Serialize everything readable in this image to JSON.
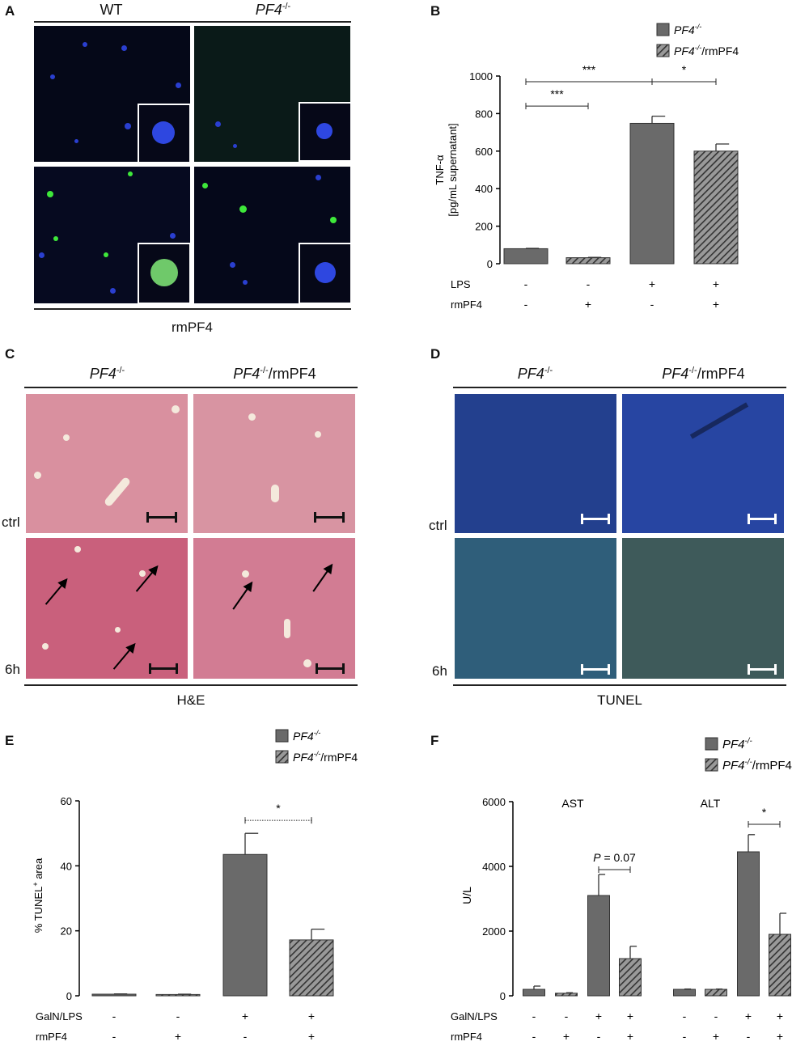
{
  "panels": {
    "A": {
      "letter": "A",
      "col1": "WT",
      "col2": "PF4",
      "col2_sup": "-/-",
      "footer": "rmPF4"
    },
    "C": {
      "letter": "C",
      "col1": "PF4",
      "col1_sup": "-/-",
      "col2": "PF4",
      "col2_sup": "-/-",
      "col2_suffix": "/rmPF4",
      "row1": "ctrl",
      "row2": "6h",
      "footer": "H&E"
    },
    "D": {
      "letter": "D",
      "col1": "PF4",
      "col1_sup": "-/-",
      "col2": "PF4",
      "col2_sup": "-/-",
      "col2_suffix": "/rmPF4",
      "row1": "ctrl",
      "row2": "6h",
      "footer": "TUNEL"
    }
  },
  "colors": {
    "bar_solid": "#6a6a6a",
    "bar_hatch": "#555555",
    "micro_bg": "#05081a",
    "nuclei": "#2a3fd0",
    "green": "#3ee83a",
    "he_bg": "#d9909f",
    "tunel_bg": "#1f3a8a"
  },
  "chart_data": [
    {
      "panel": "B",
      "type": "bar",
      "legend": [
        "PF4-/-",
        "PF4-/-/rmPF4"
      ],
      "legend_parts": [
        {
          "name": "PF4",
          "sup": "-/-",
          "suffix": ""
        },
        {
          "name": "PF4",
          "sup": "-/-",
          "suffix": "/rmPF4"
        }
      ],
      "ylabel_line1": "TNF-α",
      "ylabel_line2": "[pg/mL supernatant]",
      "ylim": [
        0,
        1000
      ],
      "yticks": [
        0,
        200,
        400,
        600,
        800,
        1000
      ],
      "bars": [
        {
          "series": 0,
          "value": 80,
          "err": 2
        },
        {
          "series": 1,
          "value": 32,
          "err": 2
        },
        {
          "series": 0,
          "value": 748,
          "err": 38
        },
        {
          "series": 1,
          "value": 600,
          "err": 38
        }
      ],
      "conditions": [
        {
          "label": "LPS",
          "values": [
            "-",
            "-",
            "+",
            "+"
          ]
        },
        {
          "label": "rmPF4",
          "values": [
            "-",
            "+",
            "-",
            "+"
          ]
        }
      ],
      "brackets": [
        {
          "from": 0,
          "to": 1,
          "y": 840,
          "label": "***",
          "style": "solid"
        },
        {
          "from": 0,
          "to": 2,
          "y": 970,
          "label": "***",
          "style": "solid"
        },
        {
          "from": 2,
          "to": 3,
          "y": 970,
          "label": "*",
          "style": "solid"
        }
      ]
    },
    {
      "panel": "E",
      "type": "bar",
      "legend": [
        "PF4-/-",
        "PF4-/-/rmPF4"
      ],
      "legend_parts": [
        {
          "name": "PF4",
          "sup": "-/-",
          "suffix": ""
        },
        {
          "name": "PF4",
          "sup": "-/-",
          "suffix": "/rmPF4"
        }
      ],
      "ylabel": "% TUNEL",
      "ylabel_sup": "+",
      "ylabel_suffix": " area",
      "ylim": [
        0,
        60
      ],
      "yticks": [
        0,
        20,
        40,
        60
      ],
      "bars": [
        {
          "series": 0,
          "value": 0.5,
          "err": 0.1
        },
        {
          "series": 1,
          "value": 0.4,
          "err": 0.1
        },
        {
          "series": 0,
          "value": 43.5,
          "err": 6.5
        },
        {
          "series": 1,
          "value": 17.2,
          "err": 3.3
        }
      ],
      "conditions": [
        {
          "label": "GalN/LPS",
          "values": [
            "-",
            "-",
            "+",
            "+"
          ]
        },
        {
          "label": "rmPF4",
          "values": [
            "-",
            "+",
            "-",
            "+"
          ]
        }
      ],
      "brackets": [
        {
          "from": 2,
          "to": 3,
          "y": 54,
          "label": "*",
          "style": "dotted"
        }
      ]
    },
    {
      "panel": "F",
      "type": "bar",
      "legend": [
        "PF4-/-",
        "PF4-/-/rmPF4"
      ],
      "legend_parts": [
        {
          "name": "PF4",
          "sup": "-/-",
          "suffix": ""
        },
        {
          "name": "PF4",
          "sup": "-/-",
          "suffix": "/rmPF4"
        }
      ],
      "ylabel": "U/L",
      "ylim": [
        0,
        6000
      ],
      "yticks": [
        0,
        2000,
        4000,
        6000
      ],
      "groups": [
        "AST",
        "ALT"
      ],
      "bars": [
        {
          "group": 0,
          "series": 0,
          "value": 200,
          "err": 100
        },
        {
          "group": 0,
          "series": 1,
          "value": 80,
          "err": 15
        },
        {
          "group": 0,
          "series": 0,
          "value": 3100,
          "err": 650
        },
        {
          "group": 0,
          "series": 1,
          "value": 1150,
          "err": 380
        },
        {
          "group": 1,
          "series": 0,
          "value": 200,
          "err": 10
        },
        {
          "group": 1,
          "series": 1,
          "value": 200,
          "err": 10
        },
        {
          "group": 1,
          "series": 0,
          "value": 4450,
          "err": 530
        },
        {
          "group": 1,
          "series": 1,
          "value": 1900,
          "err": 650
        }
      ],
      "conditions": [
        {
          "label": "GalN/LPS",
          "values": [
            "-",
            "-",
            "+",
            "+",
            "-",
            "-",
            "+",
            "+"
          ]
        },
        {
          "label": "rmPF4",
          "values": [
            "-",
            "+",
            "-",
            "+",
            "-",
            "+",
            "-",
            "+"
          ]
        }
      ],
      "brackets": [
        {
          "from": 2,
          "to": 3,
          "y": 3900,
          "label": "P = 0.07",
          "italic_prefix": "P",
          "label_rest": " = 0.07",
          "style": "solid"
        },
        {
          "from": 6,
          "to": 7,
          "y": 5300,
          "label": "*",
          "style": "solid"
        }
      ]
    }
  ]
}
